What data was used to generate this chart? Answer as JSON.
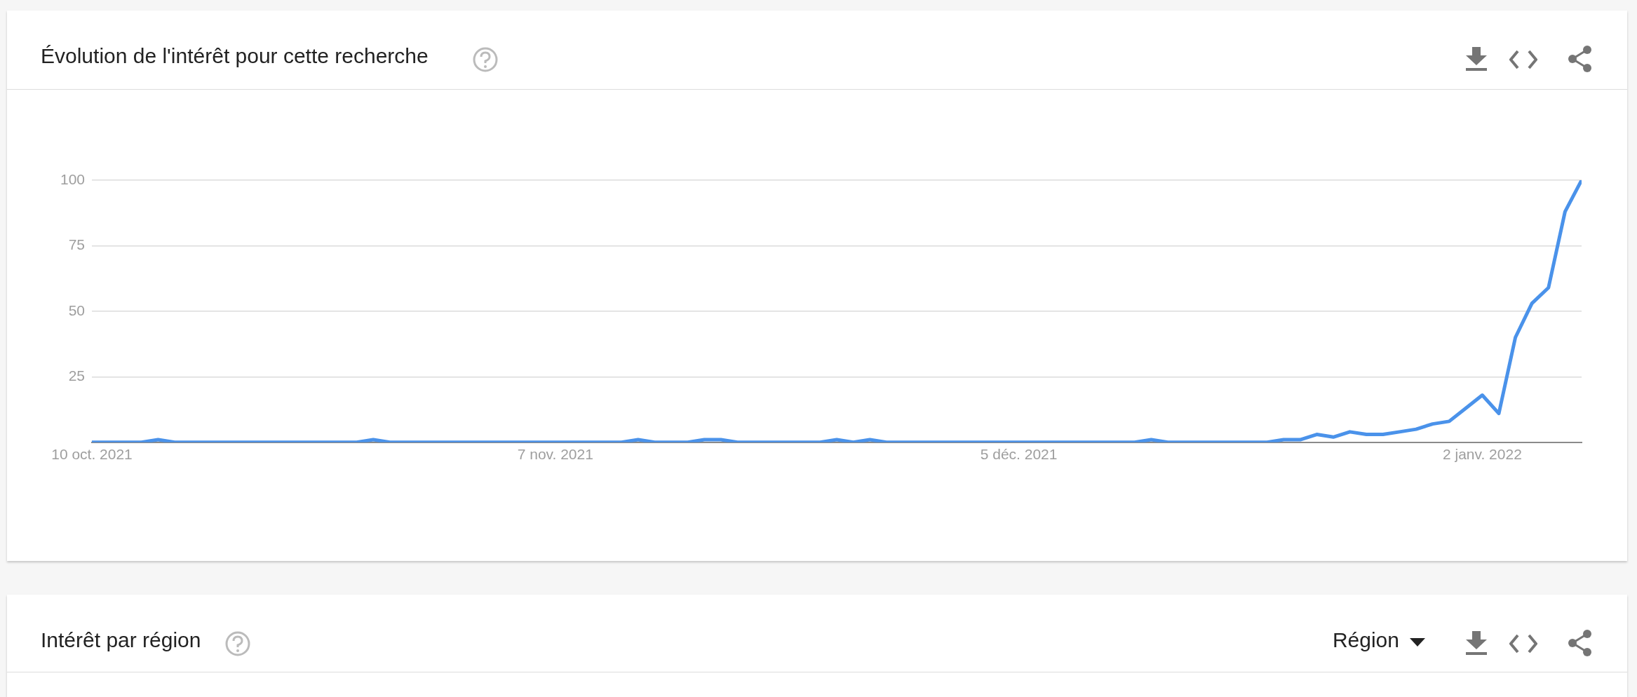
{
  "chart_data": {
    "type": "line",
    "title": "Évolution de l'intérêt pour cette recherche",
    "x": [
      "2021-10-10",
      "2021-10-11",
      "2021-10-12",
      "2021-10-13",
      "2021-10-14",
      "2021-10-15",
      "2021-10-16",
      "2021-10-17",
      "2021-10-18",
      "2021-10-19",
      "2021-10-20",
      "2021-10-21",
      "2021-10-22",
      "2021-10-23",
      "2021-10-24",
      "2021-10-25",
      "2021-10-26",
      "2021-10-27",
      "2021-10-28",
      "2021-10-29",
      "2021-10-30",
      "2021-10-31",
      "2021-11-01",
      "2021-11-02",
      "2021-11-03",
      "2021-11-04",
      "2021-11-05",
      "2021-11-06",
      "2021-11-07",
      "2021-11-08",
      "2021-11-09",
      "2021-11-10",
      "2021-11-11",
      "2021-11-12",
      "2021-11-13",
      "2021-11-14",
      "2021-11-15",
      "2021-11-16",
      "2021-11-17",
      "2021-11-18",
      "2021-11-19",
      "2021-11-20",
      "2021-11-21",
      "2021-11-22",
      "2021-11-23",
      "2021-11-24",
      "2021-11-25",
      "2021-11-26",
      "2021-11-27",
      "2021-11-28",
      "2021-11-29",
      "2021-11-30",
      "2021-12-01",
      "2021-12-02",
      "2021-12-03",
      "2021-12-04",
      "2021-12-05",
      "2021-12-06",
      "2021-12-07",
      "2021-12-08",
      "2021-12-09",
      "2021-12-10",
      "2021-12-11",
      "2021-12-12",
      "2021-12-13",
      "2021-12-14",
      "2021-12-15",
      "2021-12-16",
      "2021-12-17",
      "2021-12-18",
      "2021-12-19",
      "2021-12-20",
      "2021-12-21",
      "2021-12-22",
      "2021-12-23",
      "2021-12-24",
      "2021-12-25",
      "2021-12-26",
      "2021-12-27",
      "2021-12-28",
      "2021-12-29",
      "2021-12-30",
      "2021-12-31",
      "2022-01-01",
      "2022-01-02",
      "2022-01-03",
      "2022-01-04",
      "2022-01-05",
      "2022-01-06",
      "2022-01-07",
      "2022-01-08"
    ],
    "series": [
      {
        "color": "#4a92ea",
        "values": [
          0,
          0,
          0,
          0,
          1,
          0,
          0,
          0,
          0,
          0,
          0,
          0,
          0,
          0,
          0,
          0,
          0,
          1,
          0,
          0,
          0,
          0,
          0,
          0,
          0,
          0,
          0,
          0,
          0,
          0,
          0,
          0,
          0,
          1,
          0,
          0,
          0,
          1,
          1,
          0,
          0,
          0,
          0,
          0,
          0,
          1,
          0,
          1,
          0,
          0,
          0,
          0,
          0,
          0,
          0,
          0,
          0,
          0,
          0,
          0,
          0,
          0,
          0,
          0,
          1,
          0,
          0,
          0,
          0,
          0,
          0,
          0,
          1,
          1,
          3,
          2,
          4,
          3,
          3,
          4,
          5,
          7,
          8,
          13,
          18,
          11,
          40,
          53,
          59,
          88,
          100
        ]
      }
    ],
    "xlim": [
      "2021-10-10",
      "2022-01-08"
    ],
    "xticks": [
      {
        "value": "2021-10-10",
        "label": "10 oct. 2021"
      },
      {
        "value": "2021-11-07",
        "label": "7 nov. 2021"
      },
      {
        "value": "2021-12-05",
        "label": "5 déc. 2021"
      },
      {
        "value": "2022-01-02",
        "label": "2 janv. 2022"
      }
    ],
    "ylim": [
      0,
      100
    ],
    "yticks": [
      {
        "value": 0,
        "label": null
      },
      25,
      50,
      75,
      100
    ],
    "grid": "y",
    "legend": false,
    "marker": "none",
    "line_style": "solid",
    "annotations": [
      "Intérêt par région",
      "Région"
    ]
  }
}
